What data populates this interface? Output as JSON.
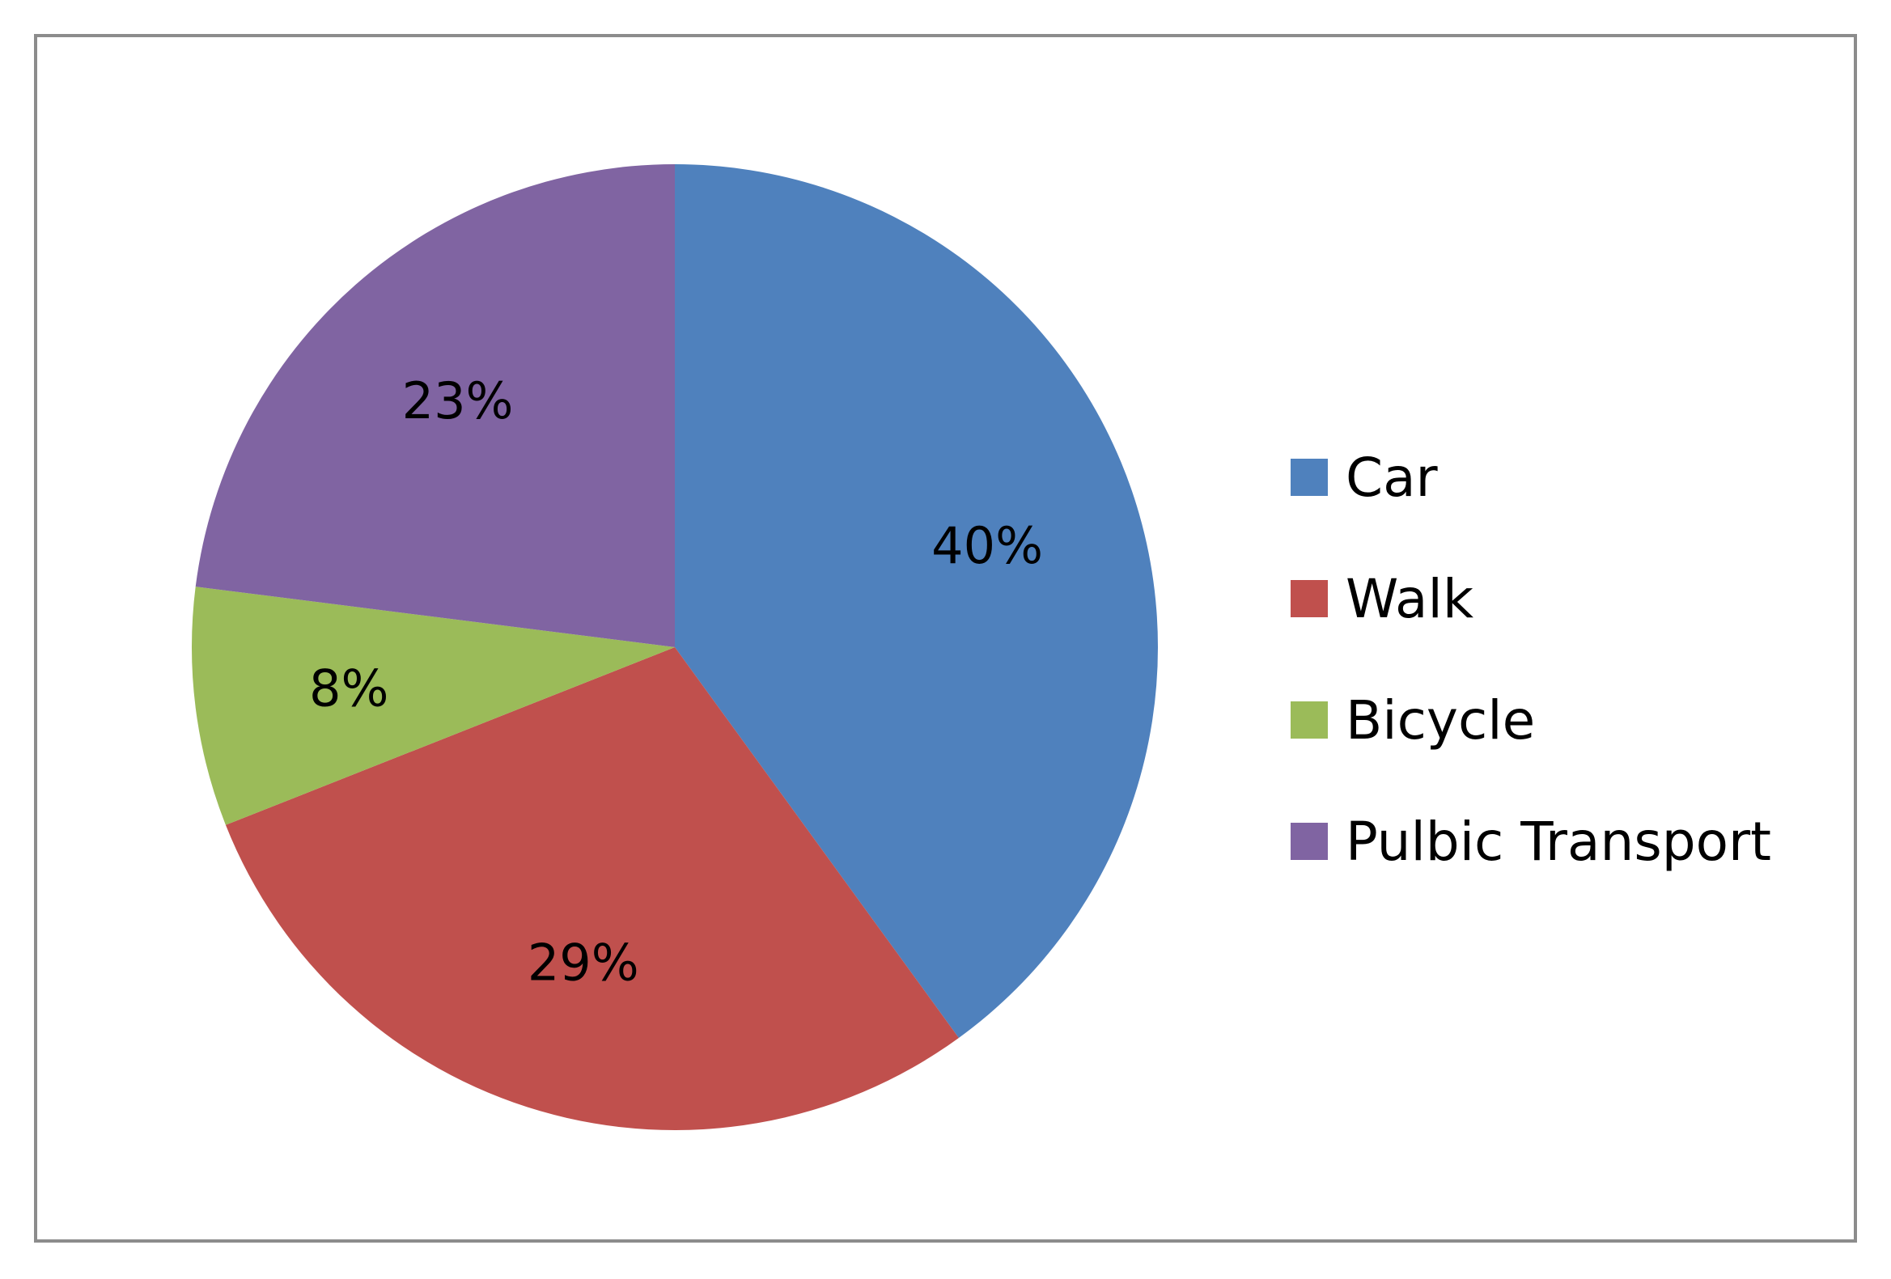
{
  "chart_data": {
    "type": "pie",
    "title": "",
    "categories": [
      "Car",
      "Walk",
      "Bicycle",
      "Pulbic Transport"
    ],
    "values": [
      40,
      29,
      8,
      23
    ],
    "labels": [
      "40%",
      "29%",
      "8%",
      "23%"
    ],
    "colors": [
      "#4f81bd",
      "#c0504d",
      "#9bbb59",
      "#8064a2"
    ],
    "start_angle": "12 o'clock",
    "direction": "clockwise",
    "legend_position": "right"
  }
}
